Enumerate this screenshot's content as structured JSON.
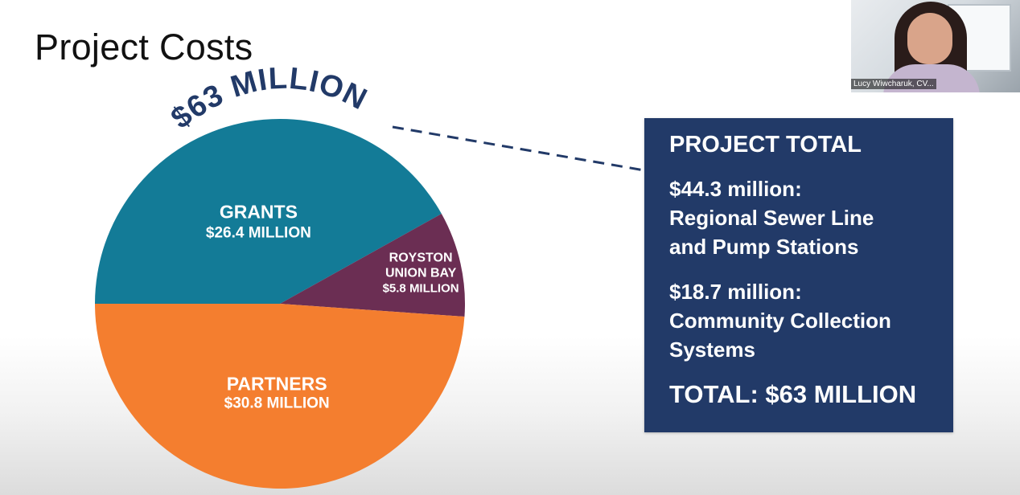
{
  "slide": {
    "title": "Project Costs",
    "arc_label": "$63 MILLION"
  },
  "chart_data": {
    "type": "pie",
    "title": "",
    "slices": [
      {
        "label": "GRANTS",
        "value_label": "$26.4 MILLION",
        "value": 26.4,
        "color": "#137b97"
      },
      {
        "label": "ROYSTON UNION BAY",
        "label_lines": [
          "ROYSTON",
          "UNION BAY"
        ],
        "value_label": "$5.8 MILLION",
        "value": 5.8,
        "color": "#6b2e53"
      },
      {
        "label": "PARTNERS",
        "value_label": "$30.8 MILLION",
        "value": 30.8,
        "color": "#f47e2f"
      }
    ],
    "total": 63,
    "colors": {
      "arc_text": "#223a68",
      "leader_line": "#223a68"
    }
  },
  "total_panel": {
    "heading": "PROJECT TOTAL",
    "items": [
      {
        "amount": "$44.3 million:",
        "lines": [
          "Regional Sewer Line",
          "and Pump Stations"
        ]
      },
      {
        "amount": "$18.7 million:",
        "lines": [
          "Community Collection",
          "Systems"
        ]
      }
    ],
    "grand_total": "TOTAL: $63 MILLION",
    "background": "#223a68"
  },
  "webcam": {
    "name": "Lucy Wiwcharuk, CV..."
  }
}
